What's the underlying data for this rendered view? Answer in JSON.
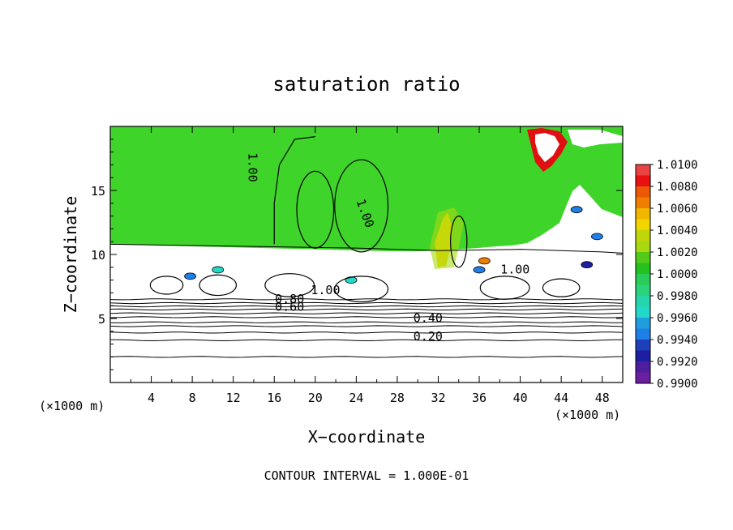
{
  "chart_data": {
    "type": "heatmap",
    "title": "saturation ratio",
    "xlabel": "X−coordinate",
    "ylabel": "Z−coordinate",
    "x_unit_left": "(×1000 m)",
    "x_unit_right": "(×1000 m)",
    "footer": "CONTOUR INTERVAL = 1.000E-01",
    "xlim": [
      0,
      50
    ],
    "ylim": [
      0,
      20
    ],
    "x_ticks": [
      4,
      8,
      12,
      16,
      20,
      24,
      28,
      32,
      36,
      40,
      44,
      48
    ],
    "y_ticks": [
      5,
      10,
      15
    ],
    "colorbar": {
      "min": 0.99,
      "max": 1.01,
      "levels": [
        {
          "label": "0.9900",
          "color": "#6a1fa0"
        },
        {
          "label": "0.9920",
          "color": "#1e1ea0"
        },
        {
          "label": "0.9940",
          "color": "#1f7fe8"
        },
        {
          "label": "0.9960",
          "color": "#22d8c8"
        },
        {
          "label": "0.9980",
          "color": "#2bd37a"
        },
        {
          "label": "1.0000",
          "color": "#25c21f"
        },
        {
          "label": "1.0020",
          "color": "#a8d810"
        },
        {
          "label": "1.0040",
          "color": "#f2d400"
        },
        {
          "label": "1.0060",
          "color": "#f07e00"
        },
        {
          "label": "1.0080",
          "color": "#e81010"
        },
        {
          "label": "1.0100",
          "color": "#f0a0a0"
        }
      ]
    },
    "background_color": "#3fd42a",
    "contour_labels": [
      {
        "text": "1.00",
        "x": 13.5,
        "y": 16.8
      },
      {
        "text": "1.00",
        "x": 24.5,
        "y": 13.1
      },
      {
        "text": "1.00",
        "x": 39.5,
        "y": 8.5
      },
      {
        "text": "1.00",
        "x": 21.0,
        "y": 6.9
      },
      {
        "text": "0.80",
        "x": 17.5,
        "y": 6.2
      },
      {
        "text": "0.60",
        "x": 17.5,
        "y": 5.6
      },
      {
        "text": "0.40",
        "x": 31.0,
        "y": 4.7
      },
      {
        "text": "0.20",
        "x": 31.0,
        "y": 3.3
      }
    ],
    "horizontal_contours_y": [
      2.0,
      3.3,
      3.9,
      4.4,
      4.7,
      5.1,
      5.4,
      5.7,
      5.95,
      6.2,
      6.5
    ]
  }
}
